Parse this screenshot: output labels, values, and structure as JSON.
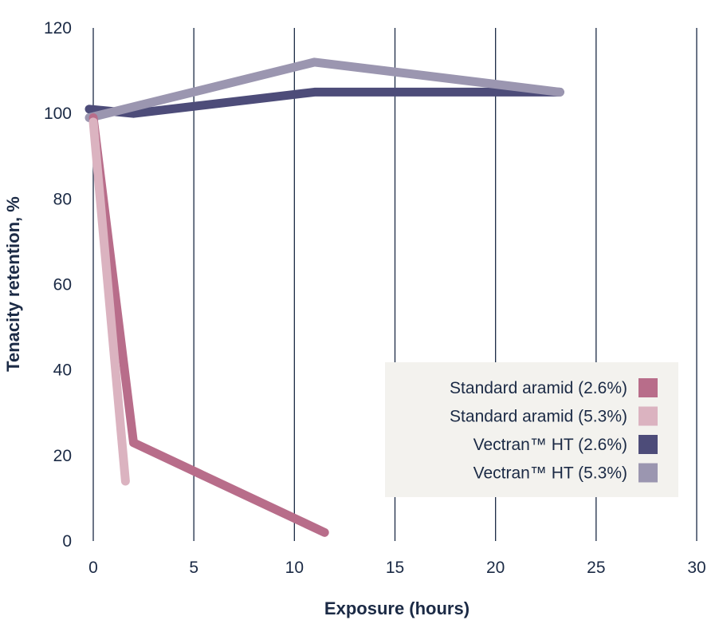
{
  "chart_data": {
    "type": "line",
    "title": "",
    "xlabel": "Exposure (hours)",
    "ylabel": "Tenacity retention, %",
    "xlim": [
      0,
      30
    ],
    "ylim": [
      0,
      120
    ],
    "xticks": [
      0,
      5,
      10,
      15,
      20,
      25,
      30
    ],
    "yticks": [
      0,
      20,
      40,
      60,
      80,
      100,
      120
    ],
    "x_tick_labels": [
      "0",
      "5",
      "10",
      "15",
      "20",
      "25",
      "30"
    ],
    "y_tick_labels": [
      "0",
      "20",
      "40",
      "60",
      "80",
      "100",
      "120"
    ],
    "grid": {
      "x": true,
      "y": false
    },
    "legend_position": "lower-right",
    "series": [
      {
        "name": "Standard aramid (2.6%)",
        "color": "#b86d8a",
        "points": [
          [
            0,
            99
          ],
          [
            2,
            23
          ],
          [
            11.5,
            2
          ]
        ]
      },
      {
        "name": "Standard aramid (5.3%)",
        "color": "#dbb3c0",
        "points": [
          [
            0,
            98
          ],
          [
            1.6,
            14
          ]
        ]
      },
      {
        "name": "Vectran™ HT (2.6%)",
        "color": "#4d4c79",
        "points": [
          [
            -0.2,
            101
          ],
          [
            2,
            100
          ],
          [
            11,
            105
          ],
          [
            23.2,
            105
          ]
        ]
      },
      {
        "name": "Vectran™ HT (5.3%)",
        "color": "#9b96b0",
        "points": [
          [
            -0.2,
            99
          ],
          [
            11,
            112
          ],
          [
            23.2,
            105
          ]
        ]
      }
    ]
  }
}
